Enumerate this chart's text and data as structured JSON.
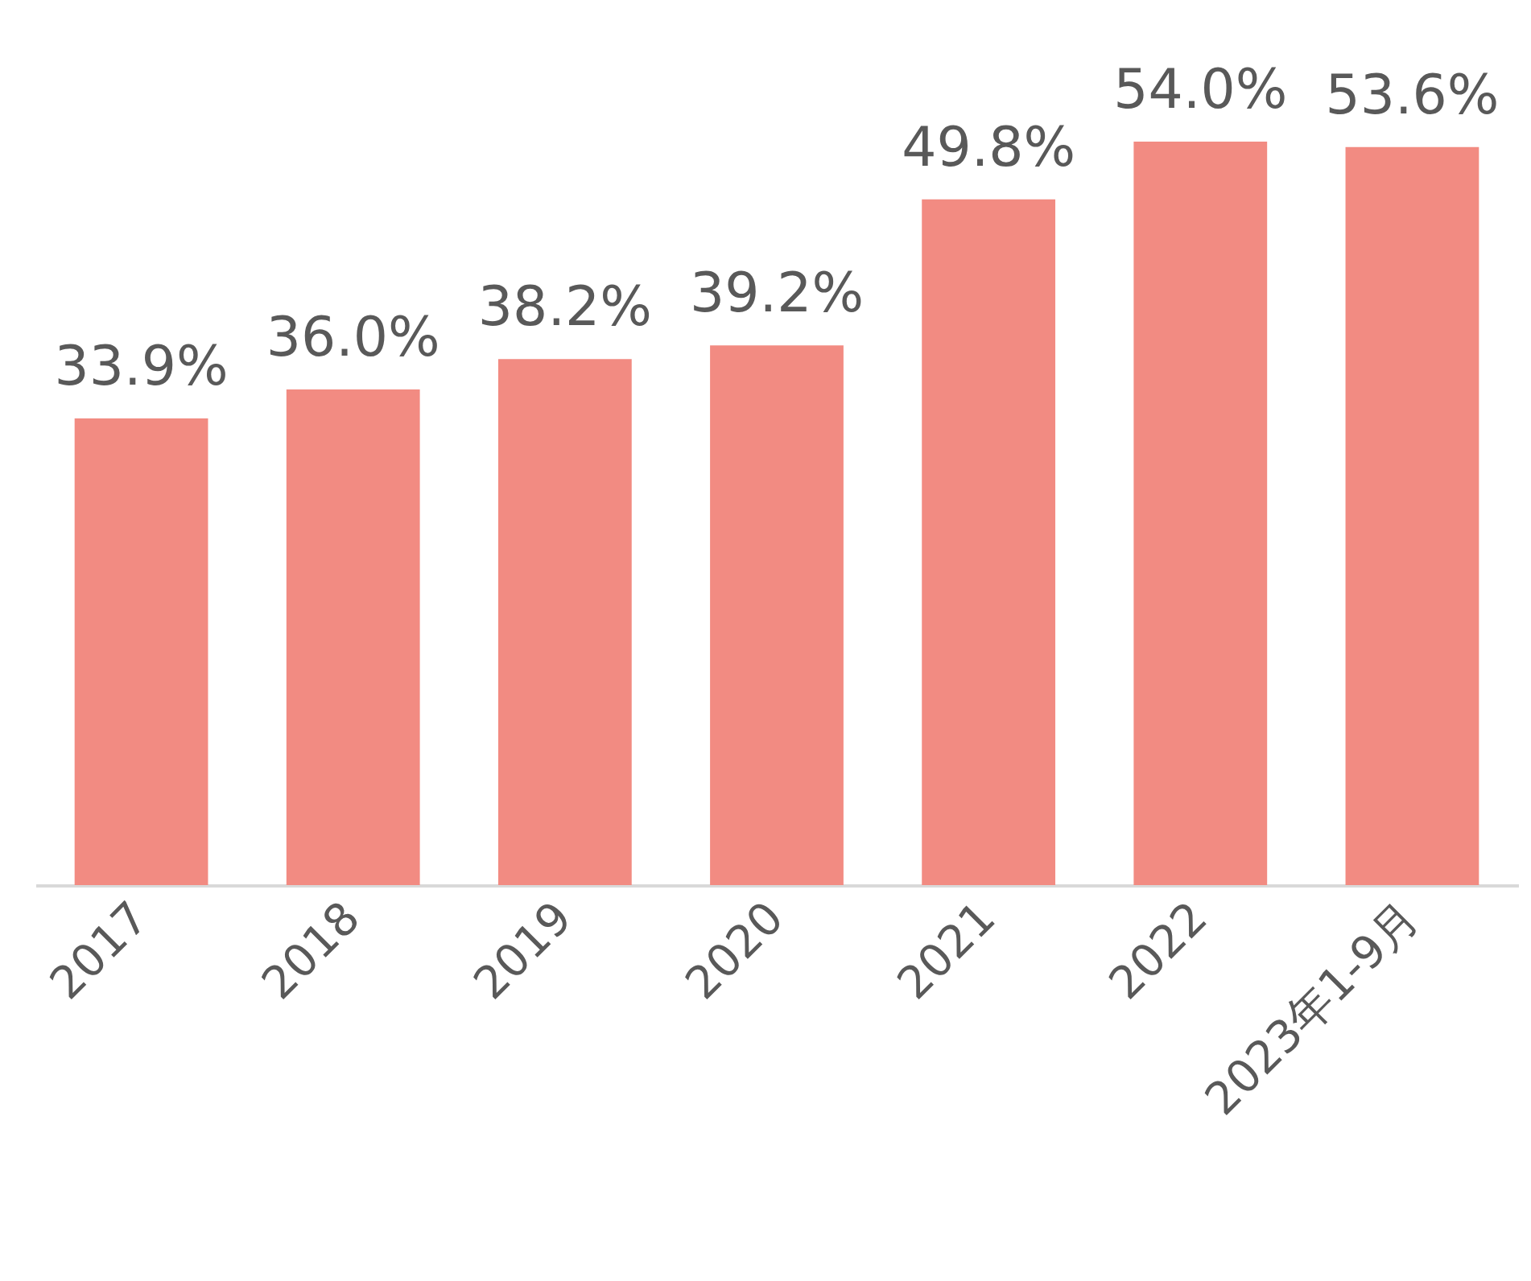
{
  "chart_data": {
    "type": "bar",
    "categories": [
      "2017",
      "2018",
      "2019",
      "2020",
      "2021",
      "2022",
      "2023年1-9月"
    ],
    "values": [
      33.9,
      36.0,
      38.2,
      39.2,
      49.8,
      54.0,
      53.6
    ],
    "color": "#f28b82",
    "value_labels": [
      "33.9%",
      "36.0%",
      "38.2%",
      "39.2%",
      "49.8%",
      "54.0%",
      "53.6%"
    ],
    "tick_labels": "x"
  }
}
